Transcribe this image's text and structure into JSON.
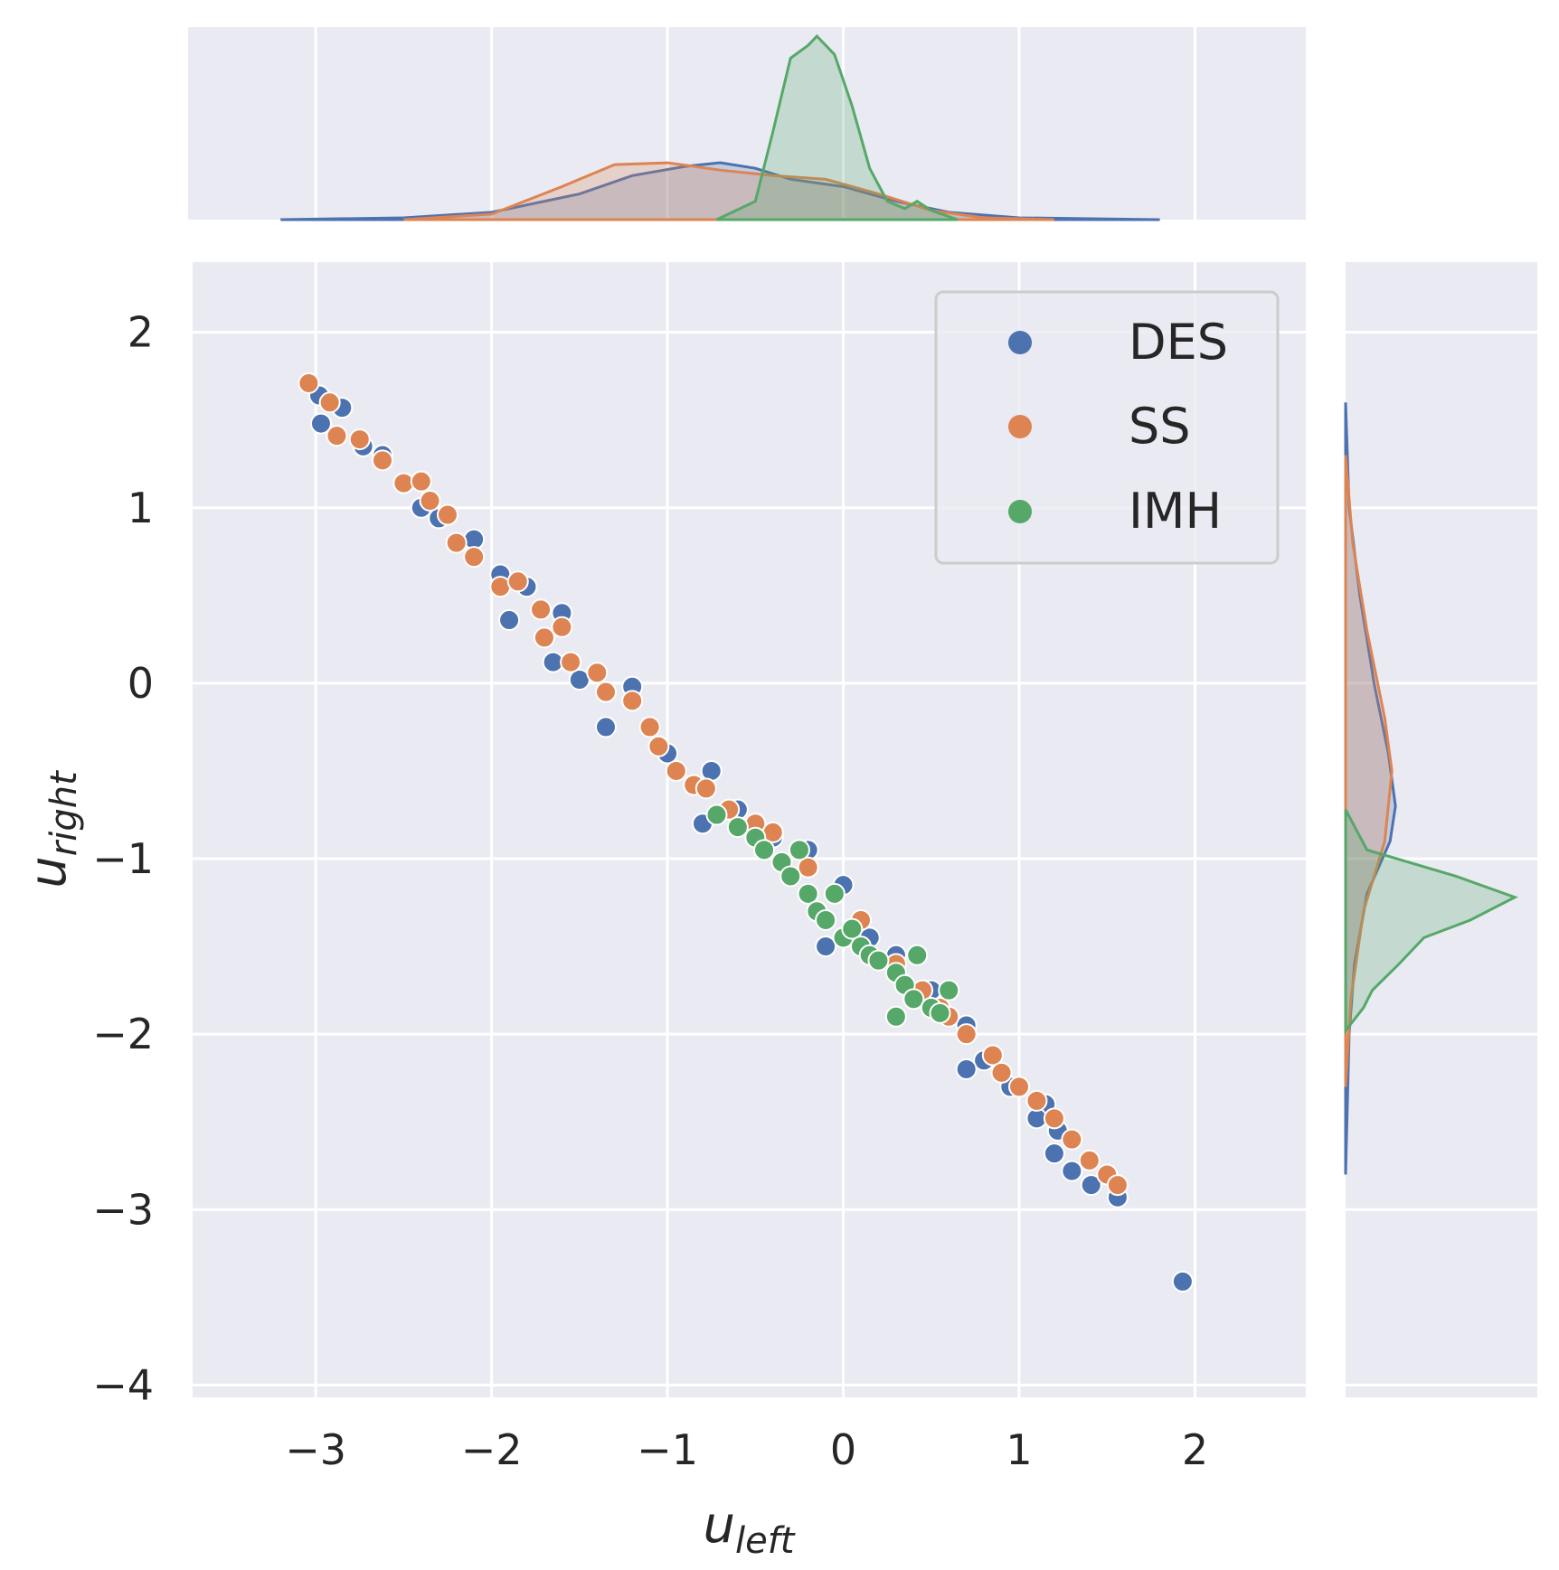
{
  "chart_data": {
    "type": "scatter",
    "xlabel": {
      "base": "u",
      "sub": "left"
    },
    "ylabel": {
      "base": "u",
      "sub": "right"
    },
    "xlim": [
      -3.7,
      2.63
    ],
    "ylim": [
      -4.07,
      2.4
    ],
    "xticks": [
      -3,
      -2,
      -1,
      0,
      1,
      2
    ],
    "yticks": [
      2,
      1,
      0,
      -1,
      -2,
      -3,
      -4
    ],
    "xtick_labels": [
      "−3",
      "−2",
      "−1",
      "0",
      "1",
      "2"
    ],
    "ytick_labels": [
      "2",
      "1",
      "0",
      "−1",
      "−2",
      "−3",
      "−4"
    ],
    "grid": true,
    "legend_position": "top-right",
    "series": [
      {
        "name": "DES",
        "color": "#4c72b0",
        "points": [
          [
            -2.98,
            1.64
          ],
          [
            -2.85,
            1.57
          ],
          [
            -2.97,
            1.48
          ],
          [
            -2.73,
            1.35
          ],
          [
            -2.62,
            1.3
          ],
          [
            -2.4,
            1.0
          ],
          [
            -2.3,
            0.94
          ],
          [
            -2.1,
            0.82
          ],
          [
            -1.95,
            0.62
          ],
          [
            -1.8,
            0.55
          ],
          [
            -1.6,
            0.4
          ],
          [
            -1.9,
            0.36
          ],
          [
            -1.65,
            0.12
          ],
          [
            -1.5,
            0.02
          ],
          [
            -1.2,
            -0.02
          ],
          [
            -1.35,
            -0.25
          ],
          [
            -1.0,
            -0.4
          ],
          [
            -0.75,
            -0.5
          ],
          [
            -0.8,
            -0.8
          ],
          [
            -0.6,
            -0.72
          ],
          [
            -0.4,
            -0.88
          ],
          [
            -0.2,
            -0.95
          ],
          [
            0.0,
            -1.15
          ],
          [
            0.15,
            -1.45
          ],
          [
            -0.1,
            -1.5
          ],
          [
            0.3,
            -1.55
          ],
          [
            0.5,
            -1.75
          ],
          [
            0.7,
            -1.95
          ],
          [
            0.8,
            -2.15
          ],
          [
            0.7,
            -2.2
          ],
          [
            0.95,
            -2.3
          ],
          [
            1.15,
            -2.4
          ],
          [
            1.1,
            -2.48
          ],
          [
            1.22,
            -2.55
          ],
          [
            1.2,
            -2.68
          ],
          [
            1.3,
            -2.78
          ],
          [
            1.41,
            -2.86
          ],
          [
            1.56,
            -2.93
          ],
          [
            1.93,
            -3.41
          ]
        ]
      },
      {
        "name": "SS",
        "color": "#dd8452",
        "points": [
          [
            -3.04,
            1.71
          ],
          [
            -2.92,
            1.6
          ],
          [
            -2.88,
            1.41
          ],
          [
            -2.75,
            1.39
          ],
          [
            -2.62,
            1.27
          ],
          [
            -2.5,
            1.14
          ],
          [
            -2.4,
            1.15
          ],
          [
            -2.35,
            1.04
          ],
          [
            -2.25,
            0.96
          ],
          [
            -2.2,
            0.8
          ],
          [
            -2.1,
            0.72
          ],
          [
            -1.95,
            0.55
          ],
          [
            -1.85,
            0.58
          ],
          [
            -1.72,
            0.42
          ],
          [
            -1.6,
            0.32
          ],
          [
            -1.7,
            0.26
          ],
          [
            -1.55,
            0.12
          ],
          [
            -1.4,
            0.06
          ],
          [
            -1.35,
            -0.05
          ],
          [
            -1.2,
            -0.1
          ],
          [
            -1.1,
            -0.25
          ],
          [
            -1.05,
            -0.36
          ],
          [
            -0.95,
            -0.5
          ],
          [
            -0.85,
            -0.58
          ],
          [
            -0.78,
            -0.6
          ],
          [
            -0.65,
            -0.72
          ],
          [
            -0.5,
            -0.8
          ],
          [
            -0.4,
            -0.85
          ],
          [
            -0.2,
            -1.05
          ],
          [
            0.1,
            -1.35
          ],
          [
            0.3,
            -1.6
          ],
          [
            0.45,
            -1.75
          ],
          [
            0.55,
            -1.85
          ],
          [
            0.6,
            -1.9
          ],
          [
            0.7,
            -2.0
          ],
          [
            0.85,
            -2.12
          ],
          [
            0.9,
            -2.22
          ],
          [
            1.0,
            -2.3
          ],
          [
            1.1,
            -2.38
          ],
          [
            1.2,
            -2.48
          ],
          [
            1.3,
            -2.6
          ],
          [
            1.4,
            -2.72
          ],
          [
            1.5,
            -2.8
          ],
          [
            1.56,
            -2.86
          ]
        ]
      },
      {
        "name": "IMH",
        "color": "#55a868",
        "points": [
          [
            -0.72,
            -0.75
          ],
          [
            -0.6,
            -0.82
          ],
          [
            -0.5,
            -0.88
          ],
          [
            -0.45,
            -0.95
          ],
          [
            -0.35,
            -1.02
          ],
          [
            -0.3,
            -1.1
          ],
          [
            -0.2,
            -1.2
          ],
          [
            -0.15,
            -1.3
          ],
          [
            -0.05,
            -1.2
          ],
          [
            -0.1,
            -1.35
          ],
          [
            0.0,
            -1.45
          ],
          [
            0.05,
            -1.4
          ],
          [
            0.1,
            -1.5
          ],
          [
            0.15,
            -1.55
          ],
          [
            0.2,
            -1.58
          ],
          [
            0.3,
            -1.65
          ],
          [
            0.35,
            -1.72
          ],
          [
            0.4,
            -1.8
          ],
          [
            0.42,
            -1.55
          ],
          [
            0.5,
            -1.85
          ],
          [
            0.55,
            -1.88
          ],
          [
            0.6,
            -1.75
          ],
          [
            0.3,
            -1.9
          ],
          [
            -0.25,
            -0.95
          ]
        ]
      }
    ],
    "marginal_x_kde": {
      "DES": [
        [
          -3.2,
          0.0
        ],
        [
          -2.5,
          0.01
        ],
        [
          -2.0,
          0.04
        ],
        [
          -1.5,
          0.14
        ],
        [
          -1.2,
          0.24
        ],
        [
          -0.9,
          0.29
        ],
        [
          -0.7,
          0.31
        ],
        [
          -0.5,
          0.28
        ],
        [
          -0.3,
          0.22
        ],
        [
          0.0,
          0.18
        ],
        [
          0.3,
          0.1
        ],
        [
          0.6,
          0.04
        ],
        [
          1.0,
          0.01
        ],
        [
          1.8,
          0.0
        ]
      ],
      "SS": [
        [
          -2.5,
          0.0
        ],
        [
          -2.0,
          0.03
        ],
        [
          -1.6,
          0.18
        ],
        [
          -1.3,
          0.3
        ],
        [
          -1.0,
          0.31
        ],
        [
          -0.7,
          0.27
        ],
        [
          -0.4,
          0.24
        ],
        [
          -0.1,
          0.22
        ],
        [
          0.2,
          0.14
        ],
        [
          0.5,
          0.05
        ],
        [
          0.8,
          0.01
        ],
        [
          1.2,
          0.0
        ]
      ],
      "IMH": [
        [
          -0.72,
          0.0
        ],
        [
          -0.5,
          0.1
        ],
        [
          -0.4,
          0.48
        ],
        [
          -0.3,
          0.88
        ],
        [
          -0.2,
          0.95
        ],
        [
          -0.15,
          1.0
        ],
        [
          -0.05,
          0.9
        ],
        [
          0.05,
          0.62
        ],
        [
          0.15,
          0.28
        ],
        [
          0.25,
          0.1
        ],
        [
          0.35,
          0.06
        ],
        [
          0.42,
          0.1
        ],
        [
          0.5,
          0.05
        ],
        [
          0.65,
          0.0
        ]
      ]
    },
    "marginal_y_kde": {
      "DES": [
        [
          1.6,
          0.0
        ],
        [
          1.0,
          0.02
        ],
        [
          0.5,
          0.08
        ],
        [
          0.0,
          0.16
        ],
        [
          -0.4,
          0.24
        ],
        [
          -0.7,
          0.28
        ],
        [
          -0.9,
          0.25
        ],
        [
          -1.2,
          0.12
        ],
        [
          -1.6,
          0.05
        ],
        [
          -2.0,
          0.02
        ],
        [
          -2.8,
          0.0
        ]
      ],
      "SS": [
        [
          1.3,
          0.0
        ],
        [
          0.8,
          0.04
        ],
        [
          0.3,
          0.12
        ],
        [
          -0.2,
          0.22
        ],
        [
          -0.5,
          0.26
        ],
        [
          -0.9,
          0.22
        ],
        [
          -1.3,
          0.1
        ],
        [
          -1.8,
          0.03
        ],
        [
          -2.3,
          0.0
        ]
      ],
      "IMH": [
        [
          -0.72,
          0.0
        ],
        [
          -0.95,
          0.12
        ],
        [
          -1.1,
          0.62
        ],
        [
          -1.22,
          0.95
        ],
        [
          -1.35,
          0.7
        ],
        [
          -1.45,
          0.44
        ],
        [
          -1.6,
          0.3
        ],
        [
          -1.75,
          0.15
        ],
        [
          -1.85,
          0.1
        ],
        [
          -1.98,
          0.0
        ]
      ]
    }
  }
}
